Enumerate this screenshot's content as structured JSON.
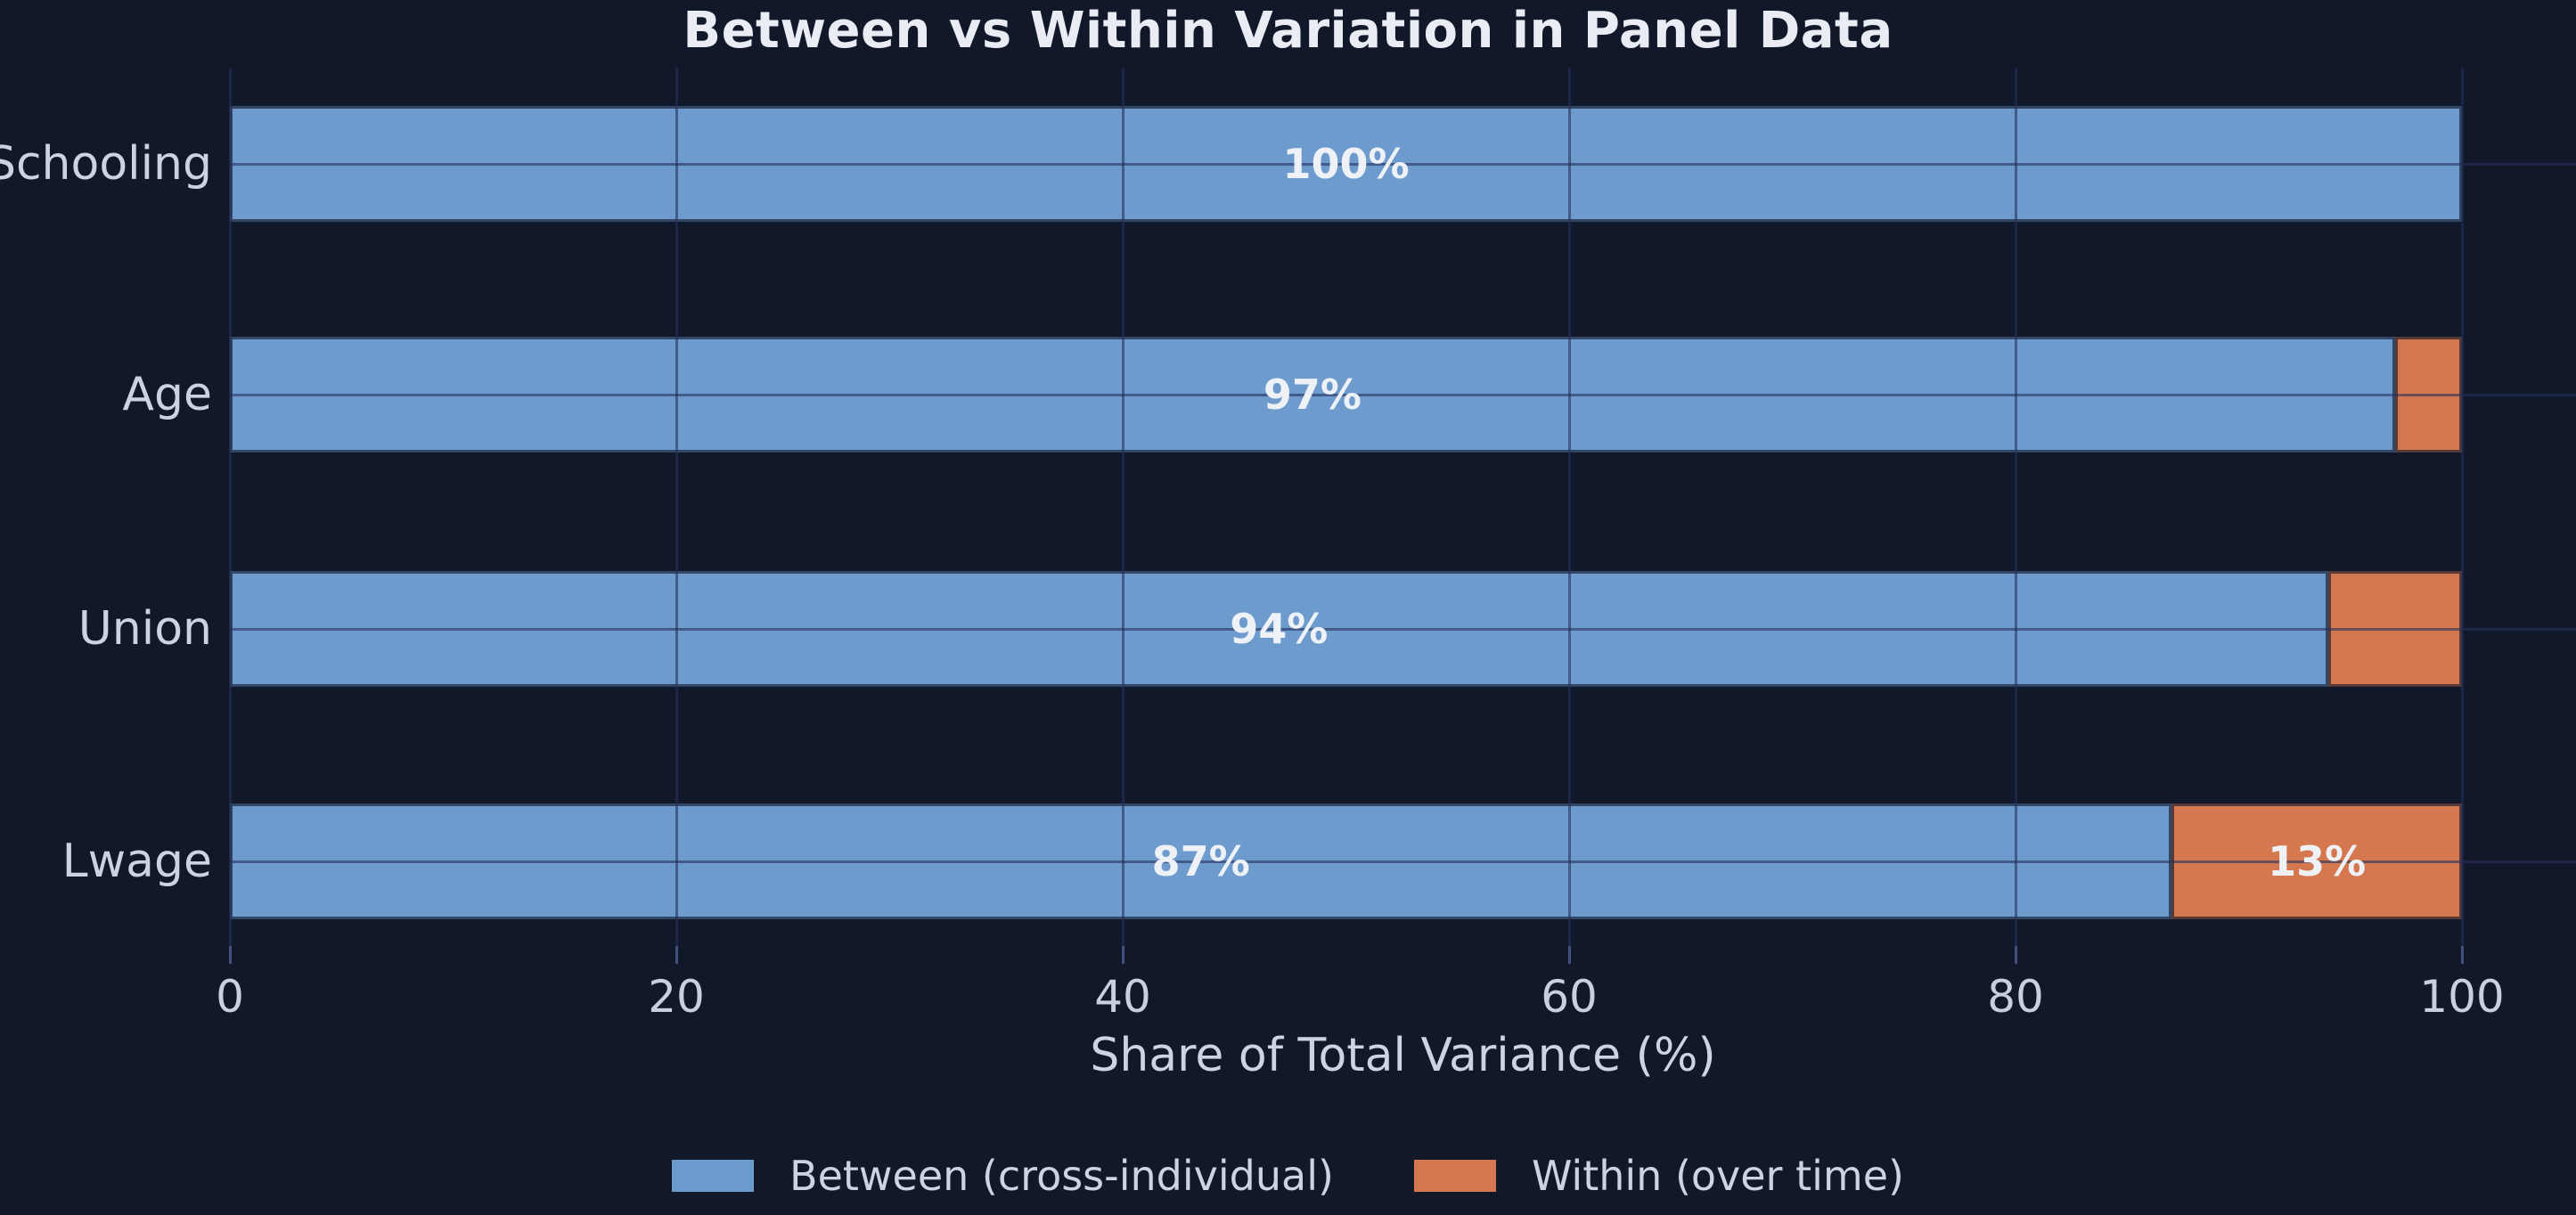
{
  "title": "Between vs Within Variation in Panel Data",
  "x_axis": {
    "label": "Share of Total Variance (%)",
    "ticks": [
      0,
      20,
      40,
      60,
      80,
      100
    ],
    "max_visible": 105
  },
  "colors": {
    "background": "#11182a",
    "between": "#6d9bce",
    "within": "#d6784f",
    "grid": "rgba(38,48,92,0.60)",
    "text_light": "#ccd3e0",
    "value_label": "#eef1f6"
  },
  "legend": {
    "items": [
      {
        "label": "Between (cross-individual)",
        "color_key": "between"
      },
      {
        "label": "Within (over time)",
        "color_key": "within"
      }
    ]
  },
  "chart_data": {
    "type": "bar",
    "orientation": "horizontal",
    "stacked": true,
    "title": "Between vs Within Variation in Panel Data",
    "xlabel": "Share of Total Variance (%)",
    "ylabel": "",
    "xlim": [
      0,
      105
    ],
    "grid": true,
    "legend_position": "bottom",
    "categories": [
      "Schooling",
      "Age",
      "Union",
      "Lwage"
    ],
    "series": [
      {
        "name": "Between (cross-individual)",
        "values": [
          100,
          97,
          94,
          87
        ]
      },
      {
        "name": "Within (over time)",
        "values": [
          0,
          3,
          6,
          13
        ]
      }
    ],
    "bar_labels": [
      {
        "category": "Schooling",
        "between_label": "100%",
        "within_label": ""
      },
      {
        "category": "Age",
        "between_label": "97%",
        "within_label": ""
      },
      {
        "category": "Union",
        "between_label": "94%",
        "within_label": ""
      },
      {
        "category": "Lwage",
        "between_label": "87%",
        "within_label": "13%"
      }
    ]
  }
}
